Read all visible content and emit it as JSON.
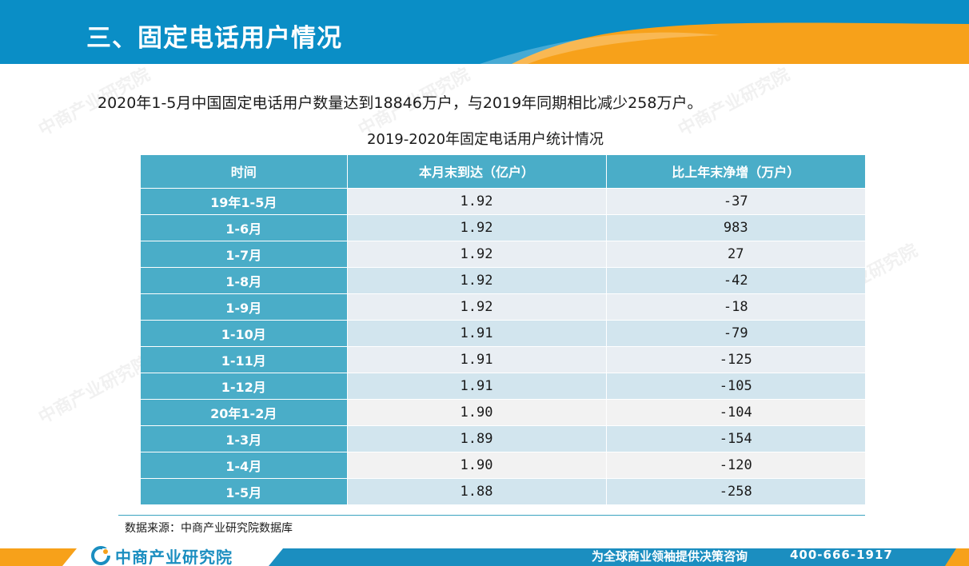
{
  "header": {
    "title": "三、固定电话用户情况",
    "colors": {
      "bar": "#0a8ec6",
      "accent": "#f7a11a"
    }
  },
  "intro": "2020年1-5月中国固定电话用户数量达到18846万户，与2019年同期相比减少258万户。",
  "table": {
    "caption": "2019-2020年固定电话用户统计情况",
    "headers": [
      "时间",
      "本月末到达（亿户）",
      "比上年末净增（万户）"
    ],
    "rows": [
      {
        "time": "19年1-5月",
        "users": "1.92",
        "increase": "-37"
      },
      {
        "time": "1-6月",
        "users": "1.92",
        "increase": "983"
      },
      {
        "time": "1-7月",
        "users": "1.92",
        "increase": "27"
      },
      {
        "time": "1-8月",
        "users": "1.92",
        "increase": "-42"
      },
      {
        "time": "1-9月",
        "users": "1.92",
        "increase": "-18"
      },
      {
        "time": "1-10月",
        "users": "1.91",
        "increase": "-79"
      },
      {
        "time": "1-11月",
        "users": "1.91",
        "increase": "-125"
      },
      {
        "time": "1-12月",
        "users": "1.91",
        "increase": "-105"
      },
      {
        "time": "20年1-2月",
        "users": "1.90",
        "increase": "-104"
      },
      {
        "time": "1-3月",
        "users": "1.89",
        "increase": "-154"
      },
      {
        "time": "1-4月",
        "users": "1.90",
        "increase": "-120"
      },
      {
        "time": "1-5月",
        "users": "1.88",
        "increase": "-258"
      }
    ]
  },
  "source": "数据来源：中商产业研究院数据库",
  "footer": {
    "logo_text": "中商产业研究院",
    "slogan": "为全球商业领袖提供决策咨询",
    "phone": "400-666-1917"
  },
  "watermark": "中商产业研究院"
}
